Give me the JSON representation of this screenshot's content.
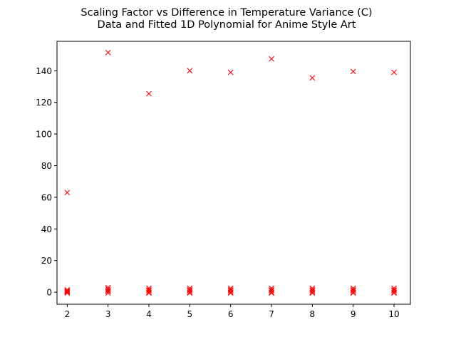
{
  "chart_data": {
    "type": "scatter",
    "title_lines": [
      "Scaling Factor vs Difference in Temperature Variance (C)",
      "Data and Fitted 1D Polynomial for Anime Style Art"
    ],
    "xlabel": "",
    "ylabel": "",
    "xlim": [
      1.75,
      10.4
    ],
    "ylim": [
      -7.6,
      158.6
    ],
    "xticks": [
      2,
      3,
      4,
      5,
      6,
      7,
      8,
      9,
      10
    ],
    "yticks": [
      0,
      20,
      40,
      60,
      80,
      100,
      120,
      140
    ],
    "grid": false,
    "marker": "x",
    "marker_color": "#ff0000",
    "series": [
      {
        "x": [
          2,
          3,
          4,
          5,
          6,
          7,
          8,
          9,
          10
        ],
        "y": [
          63,
          151.5,
          125.5,
          140,
          139,
          147.5,
          135.5,
          139.5,
          139
        ]
      },
      {
        "x": [
          2,
          2,
          2,
          2,
          2,
          3,
          3,
          3,
          3,
          3,
          4,
          4,
          4,
          4,
          4,
          5,
          5,
          5,
          5,
          5,
          6,
          6,
          6,
          6,
          6,
          7,
          7,
          7,
          7,
          7,
          8,
          8,
          8,
          8,
          8,
          9,
          9,
          9,
          9,
          9,
          10,
          10,
          10,
          10,
          10
        ],
        "y": [
          -0.5,
          0,
          0.5,
          1,
          1.5,
          -0.5,
          0.5,
          1,
          2,
          3,
          -0.5,
          0,
          1,
          1.5,
          2.5,
          -0.5,
          0,
          1,
          1.5,
          2.5,
          -0.5,
          0,
          1,
          1.5,
          2.5,
          -0.5,
          0,
          1,
          1.5,
          2.5,
          -0.5,
          0,
          1,
          1.5,
          2.5,
          -0.5,
          0,
          1,
          1.5,
          2.5,
          -0.5,
          0,
          1,
          1.5,
          2.5
        ]
      }
    ]
  }
}
